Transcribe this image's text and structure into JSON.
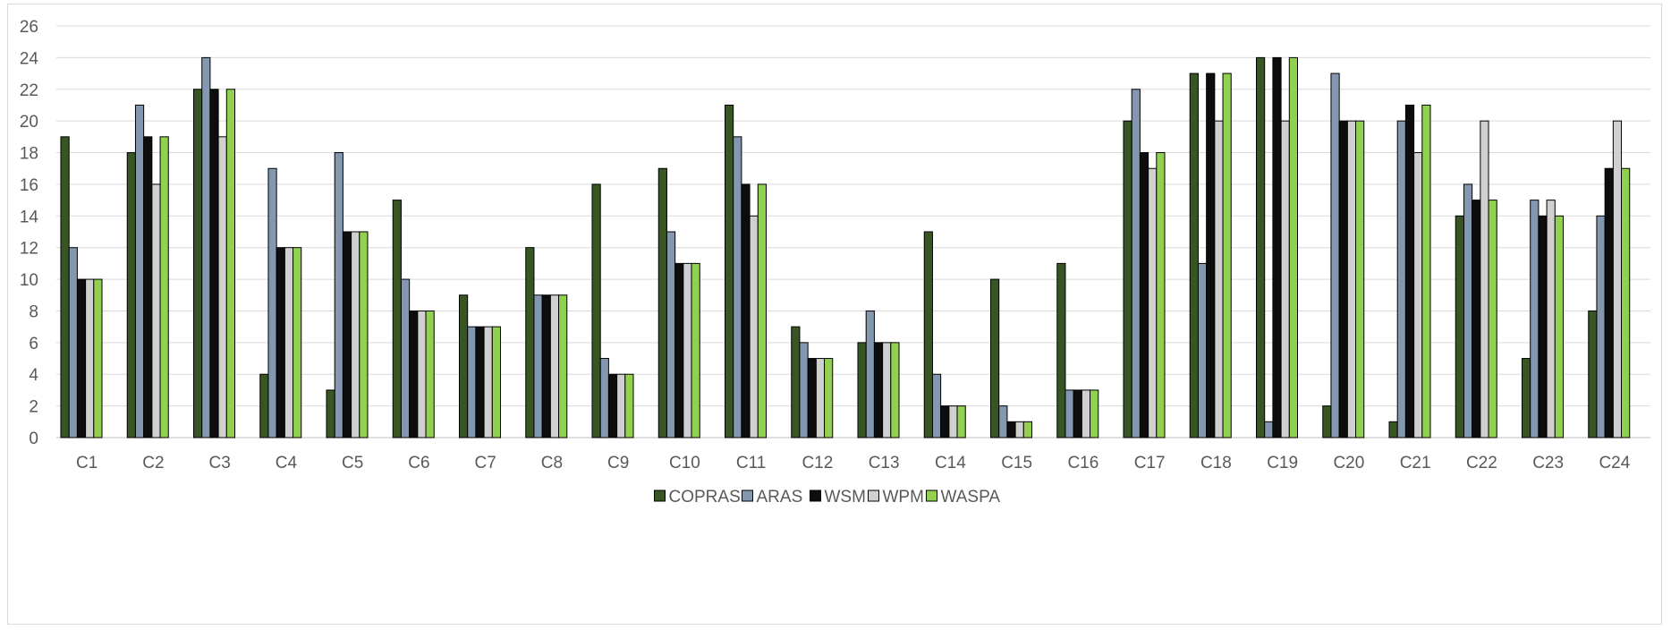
{
  "chart_data": {
    "type": "bar",
    "categories": [
      "C1",
      "C2",
      "C3",
      "C4",
      "C5",
      "C6",
      "C7",
      "C8",
      "C9",
      "C10",
      "C11",
      "C12",
      "C13",
      "C14",
      "C15",
      "C16",
      "C17",
      "C18",
      "C19",
      "C20",
      "C21",
      "C22",
      "C23",
      "C24"
    ],
    "series": [
      {
        "name": "COPRAS",
        "color": "#375623",
        "values": [
          19,
          18,
          22,
          4,
          3,
          15,
          9,
          12,
          16,
          17,
          21,
          7,
          6,
          13,
          10,
          11,
          20,
          23,
          24,
          2,
          1,
          14,
          5,
          8
        ]
      },
      {
        "name": "ARAS",
        "color": "#8497b0",
        "values": [
          12,
          21,
          24,
          17,
          18,
          10,
          7,
          9,
          5,
          13,
          19,
          6,
          8,
          4,
          2,
          3,
          22,
          11,
          1,
          23,
          20,
          16,
          15,
          14
        ]
      },
      {
        "name": "WSM",
        "color": "#0d0d0d",
        "values": [
          10,
          19,
          22,
          12,
          13,
          8,
          7,
          9,
          4,
          11,
          16,
          5,
          6,
          2,
          1,
          3,
          18,
          23,
          24,
          20,
          21,
          15,
          14,
          17
        ]
      },
      {
        "name": "WPM",
        "color": "#d0d0d0",
        "values": [
          10,
          16,
          19,
          12,
          13,
          8,
          7,
          9,
          4,
          11,
          14,
          5,
          6,
          2,
          1,
          3,
          17,
          20,
          20,
          20,
          18,
          20,
          15,
          20
        ]
      },
      {
        "name": "WASPA",
        "color": "#92d050",
        "values": [
          10,
          19,
          22,
          12,
          13,
          8,
          7,
          9,
          4,
          11,
          16,
          5,
          6,
          2,
          1,
          3,
          18,
          23,
          24,
          20,
          21,
          15,
          14,
          17
        ]
      }
    ],
    "ylim": [
      0,
      26
    ],
    "yticks": [
      0,
      2,
      4,
      6,
      8,
      10,
      12,
      14,
      16,
      18,
      20,
      22,
      24,
      26
    ],
    "grid": true,
    "legend_position": "bottom"
  }
}
